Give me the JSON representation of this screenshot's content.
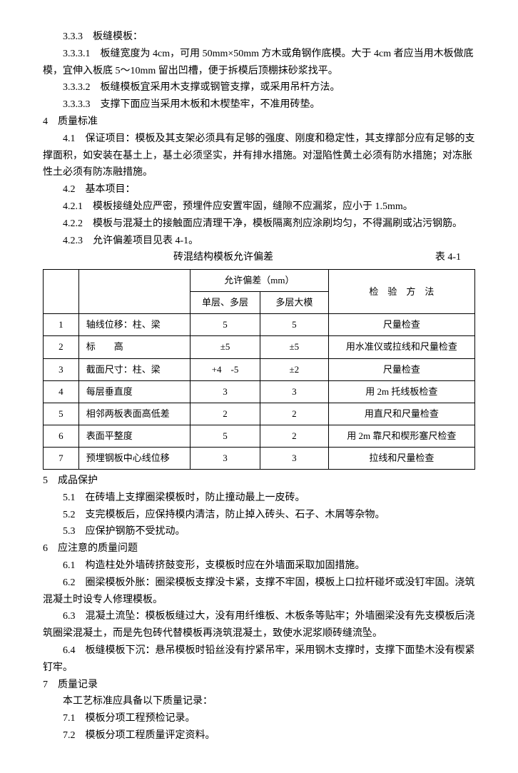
{
  "s333": "3.3.3　板缝模板：",
  "s3331": "3.3.3.1　板缝宽度为 4cm，可用 50mm×50mm 方木或角钢作底模。大于 4cm 者应当用木板做底模，宜伸入板底 5～10mm 留出凹槽，便于拆模后顶棚抹砂浆找平。",
  "s3332": "3.3.3.2　板缝模板宜采用木支撑或钢管支撑，或采用吊杆方法。",
  "s3333": "3.3.3.3　支撑下面应当采用木板和木楔垫牢，不准用砖垫。",
  "s4": "4　质量标准",
  "s41": "4.1　保证项目：模板及其支架必须具有足够的强度、刚度和稳定性，其支撑部分应有足够的支撑面积，如安装在基土上，基土必须坚实，并有排水措施。对湿陷性黄土必须有防水措施；对冻胀性土必须有防冻融措施。",
  "s42": "4.2　基本项目：",
  "s421": "4.2.1　模板接缝处应严密，预埋件应安置牢固，缝隙不应漏浆，应小于 1.5mm。",
  "s422": "4.2.2　模板与混凝土的接触面应清理干净，模板隔离剂应涂刷均匀，不得漏刷或沾污钢筋。",
  "s423": "4.2.3　允许偏差项目见表 4-1。",
  "table": {
    "caption": "砖混结构模板允许偏差",
    "number": "表 4-1",
    "header": {
      "blank1": "",
      "blank2": "",
      "tol": "允许偏差（mm）",
      "method": "检　验　方　法",
      "sub1": "单层、多层",
      "sub2": "多层大模"
    },
    "rows": [
      {
        "n": "1",
        "name": "轴线位移：柱、梁",
        "a": "5",
        "b": "5",
        "m": "尺量检查"
      },
      {
        "n": "2",
        "name": "标　　高",
        "a": "±5",
        "b": "±5",
        "m": "用水准仪或拉线和尺量检查"
      },
      {
        "n": "3",
        "name": "截面尺寸：柱、梁",
        "a": "+4　-5",
        "b": "±2",
        "m": "尺量检查"
      },
      {
        "n": "4",
        "name": "每层垂直度",
        "a": "3",
        "b": "3",
        "m": "用 2m 托线板检查"
      },
      {
        "n": "5",
        "name": "相邻两板表面高低差",
        "a": "2",
        "b": "2",
        "m": "用直尺和尺量检查"
      },
      {
        "n": "6",
        "name": "表面平整度",
        "a": "5",
        "b": "2",
        "m": "用 2m 靠尺和楔形塞尺检查"
      },
      {
        "n": "7",
        "name": "预埋钢板中心线位移",
        "a": "3",
        "b": "3",
        "m": "拉线和尺量检查"
      }
    ]
  },
  "s5": "5　成品保护",
  "s51": "5.1　在砖墙上支撑圈梁模板时，防止撞动最上一皮砖。",
  "s52": "5.2　支完模板后，应保持模内清洁，防止掉入砖头、石子、木屑等杂物。",
  "s53": "5.3　应保护钢筋不受扰动。",
  "s6": "6　应注意的质量问题",
  "s61": "6.1　构造柱处外墙砖挤鼓变形，支模板时应在外墙面采取加固措施。",
  "s62": "6.2　圈梁模板外胀：圈梁模板支撑没卡紧，支撑不牢固，模板上口拉杆碰坏或没钉牢固。浇筑混凝土时设专人修理模板。",
  "s63": "6.3　混凝土流坠：模板板缝过大，没有用纤维板、木板条等贴牢；外墙圈梁没有先支模板后浇筑圈梁混凝土，而是先包砖代替模板再浇筑混凝土，致使水泥浆顺砖缝流坠。",
  "s64": "6.4　板缝模板下沉：悬吊模板时铅丝没有拧紧吊牢，采用钢木支撑时，支撑下面垫木没有楔紧钉牢。",
  "s7": "7　质量记录",
  "s7intro": "本工艺标准应具备以下质量记录：",
  "s71": "7.1　模板分项工程预检记录。",
  "s72": "7.2　模板分项工程质量评定资料。"
}
